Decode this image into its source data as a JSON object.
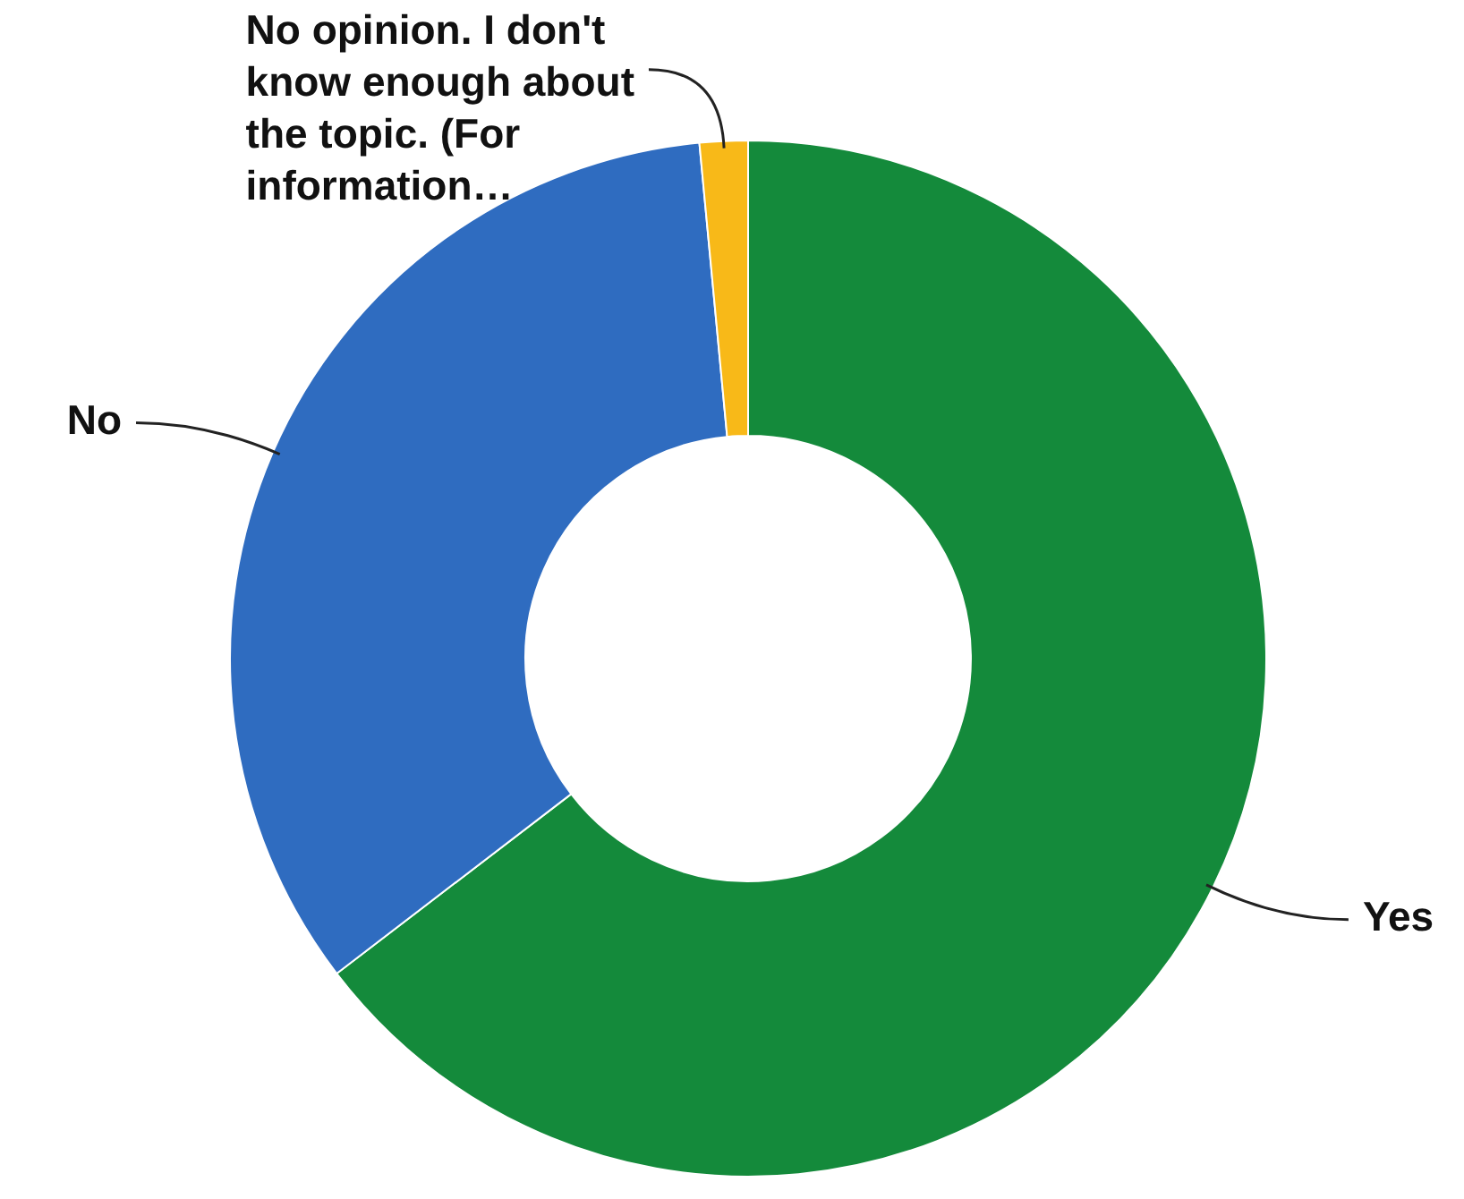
{
  "chart_data": {
    "type": "donut",
    "categories": [
      "Yes",
      "No",
      "No opinion. I don't know enough about the topic. (For information…"
    ],
    "values": [
      64.6,
      33.9,
      1.5
    ],
    "colors": [
      "#148a3b",
      "#2f6cc0",
      "#f8b918"
    ],
    "legend": false
  }
}
